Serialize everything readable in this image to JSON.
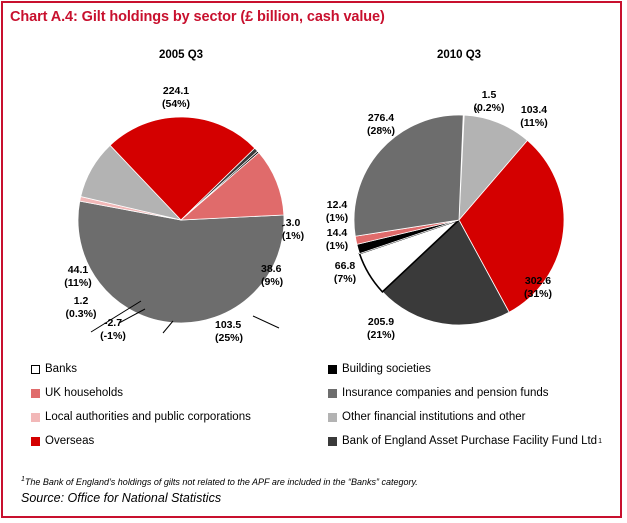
{
  "title": "Chart A.4: Gilt holdings by sector (£ billion, cash value)",
  "chart_data": [
    {
      "type": "pie",
      "title": "2005 Q3",
      "slices": [
        {
          "sector": "Insurance companies and pension funds",
          "value": 224.1,
          "label_value": "224.1",
          "label_pct": "(54%)",
          "color": "#6d6d6d"
        },
        {
          "sector": "Local authorities and public corporations",
          "value": 3.0,
          "label_value": "3.0",
          "label_pct": "(1%)",
          "color": "#f2b8b8"
        },
        {
          "sector": "Other financial institutions and other",
          "value": 38.6,
          "label_value": "38.6",
          "label_pct": "(9%)",
          "color": "#b3b3b3"
        },
        {
          "sector": "Overseas",
          "value": 103.5,
          "label_value": "103.5",
          "label_pct": "(25%)",
          "color": "#d40000"
        },
        {
          "sector": "Bank of England Asset Purchase Facility Fund Ltd",
          "value": -2.7,
          "label_value": "-2.7",
          "label_pct": "(-1%)",
          "color": "#3a3a3a"
        },
        {
          "sector": "Building societies",
          "value": 1.2,
          "label_value": "1.2",
          "label_pct": "(0.3%)",
          "color": "#000000"
        },
        {
          "sector": "UK households",
          "value": 44.1,
          "label_value": "44.1",
          "label_pct": "(11%)",
          "color": "#e06b6b"
        }
      ]
    },
    {
      "type": "pie",
      "title": "2010 Q3",
      "slices": [
        {
          "sector": "Local authorities and public corporations",
          "value": 1.5,
          "label_value": "1.5",
          "label_pct": "(0.2%)",
          "color": "#f2b8b8"
        },
        {
          "sector": "Other financial institutions and other",
          "value": 103.4,
          "label_value": "103.4",
          "label_pct": "(11%)",
          "color": "#b3b3b3"
        },
        {
          "sector": "Overseas",
          "value": 302.6,
          "label_value": "302.6",
          "label_pct": "(31%)",
          "color": "#d40000"
        },
        {
          "sector": "Bank of England Asset Purchase Facility Fund Ltd",
          "value": 205.9,
          "label_value": "205.9",
          "label_pct": "(21%)",
          "color": "#3a3a3a"
        },
        {
          "sector": "Banks",
          "value": 66.8,
          "label_value": "66.8",
          "label_pct": "(7%)",
          "color": "#ffffff"
        },
        {
          "sector": "Building societies",
          "value": 14.4,
          "label_value": "14.4",
          "label_pct": "(1%)",
          "color": "#000000"
        },
        {
          "sector": "UK households",
          "value": 12.4,
          "label_value": "12.4",
          "label_pct": "(1%)",
          "color": "#e06b6b"
        },
        {
          "sector": "Insurance companies and pension funds",
          "value": 276.4,
          "label_value": "276.4",
          "label_pct": "(28%)",
          "color": "#6d6d6d"
        }
      ]
    }
  ],
  "legend": [
    {
      "label": "Banks",
      "color": "#ffffff",
      "outlined": true
    },
    {
      "label": "Building societies",
      "color": "#000000"
    },
    {
      "label": "UK households",
      "color": "#e06b6b"
    },
    {
      "label": "Insurance companies and pension funds",
      "color": "#6d6d6d"
    },
    {
      "label": "Local authorities and public corporations",
      "color": "#f2b8b8"
    },
    {
      "label": "Other financial institutions and other",
      "color": "#b3b3b3"
    },
    {
      "label": "Overseas",
      "color": "#d40000"
    },
    {
      "label": "Bank of England Asset Purchase Facility Fund Ltd",
      "color": "#3a3a3a",
      "superscript": "1"
    }
  ],
  "footnote": {
    "marker": "1",
    "text": "The Bank of England’s holdings of gilts not related to the APF are included in the “Banks” category."
  },
  "source": "Source: Office for National Statistics"
}
